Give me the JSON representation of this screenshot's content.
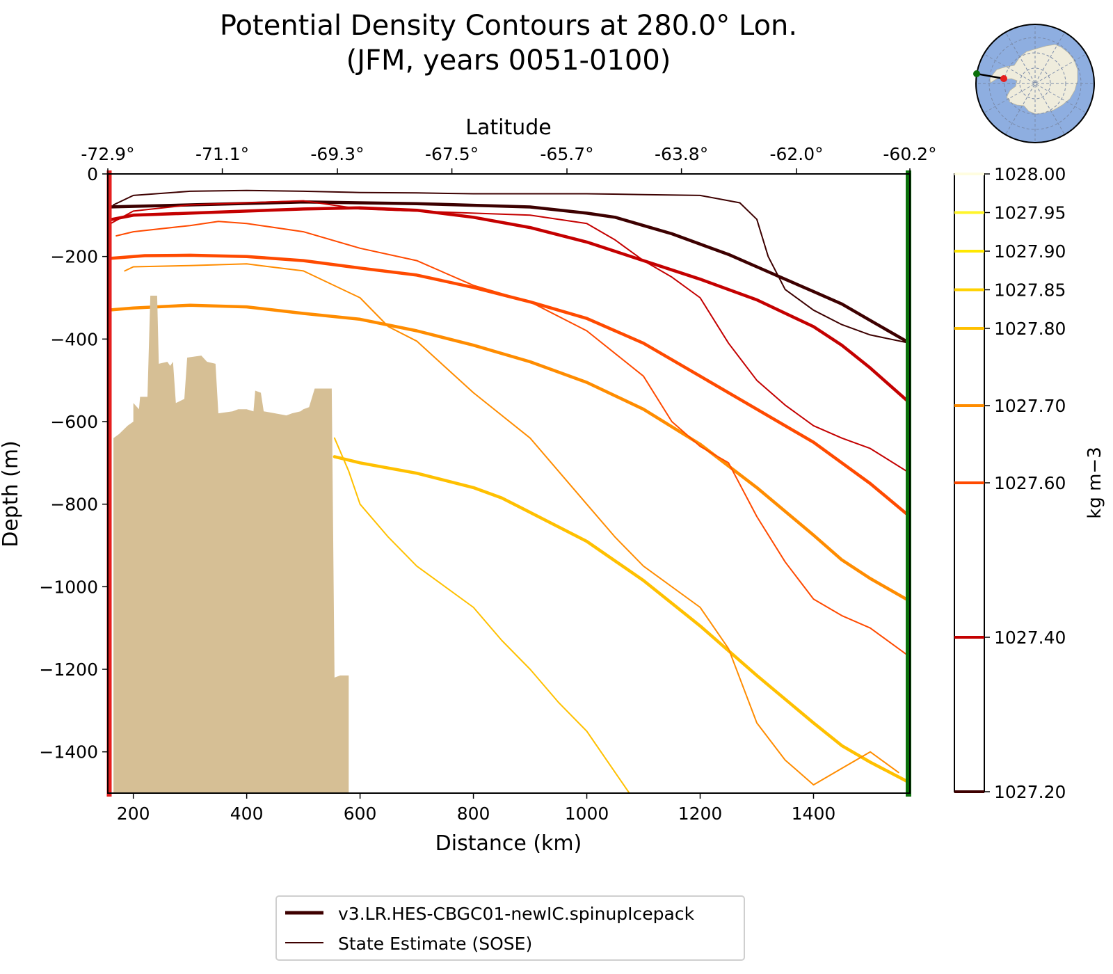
{
  "chart_data": {
    "type": "line",
    "title": "Potential Density Contours at 280.0° Lon.",
    "subtitle": "(JFM, years 0051-0100)",
    "xlabel": "Distance (km)",
    "ylabel": "Depth (m)",
    "top_axis_label": "Latitude",
    "xlim": [
      155,
      1570
    ],
    "ylim": [
      -1500,
      0
    ],
    "x_ticks": [
      200,
      400,
      600,
      800,
      1000,
      1200,
      1400
    ],
    "x_tick_labels": [
      "200",
      "400",
      "600",
      "800",
      "1000",
      "1200",
      "1400"
    ],
    "y_ticks": [
      0,
      -200,
      -400,
      -600,
      -800,
      -1000,
      -1200,
      -1400
    ],
    "y_tick_labels": [
      "0",
      "−200",
      "−400",
      "−600",
      "−800",
      "−1000",
      "−1200",
      "−1400"
    ],
    "top_ticks": [
      155,
      357,
      560,
      762,
      965,
      1167,
      1370,
      1570
    ],
    "top_tick_labels": [
      "-72.9°",
      "-71.1°",
      "-69.3°",
      "-67.5°",
      "-65.7°",
      "-63.8°",
      "-62.0°",
      "-60.2°"
    ],
    "grid": false,
    "legend_placement": "bottom-center",
    "legend": [
      {
        "label": "v3.LR.HES-CBGC01-newIC.spinupIcepack",
        "style": "thick",
        "color": "#3d0000"
      },
      {
        "label": "State Estimate (SOSE)",
        "style": "thin",
        "color": "#3d0000"
      }
    ],
    "colorbar": {
      "label": "kg m−3",
      "levels": [
        1027.2,
        1027.4,
        1027.6,
        1027.7,
        1027.8,
        1027.85,
        1027.9,
        1027.95,
        1028.0
      ],
      "level_labels": [
        "1027.20",
        "1027.40",
        "1027.60",
        "1027.70",
        "1027.80",
        "1027.85",
        "1027.90",
        "1027.95",
        "1028.00"
      ],
      "level_colors": [
        "#3d0000",
        "#c40000",
        "#ff4a00",
        "#ff8c00",
        "#ffc000",
        "#ffd200",
        "#ffe800",
        "#fff52a",
        "#fffde0"
      ]
    },
    "bathymetry": {
      "color": "#d6bf95",
      "x": [
        165,
        175,
        190,
        200,
        200,
        210,
        212,
        225,
        230,
        242,
        245,
        260,
        265,
        270,
        275,
        290,
        295,
        320,
        330,
        345,
        350,
        375,
        385,
        400,
        412,
        415,
        425,
        430,
        450,
        470,
        480,
        495,
        500,
        510,
        520,
        540,
        550,
        555,
        565,
        580
      ],
      "y": [
        -640,
        -630,
        -610,
        -600,
        -555,
        -570,
        -540,
        -540,
        -295,
        -295,
        -460,
        -455,
        -465,
        -455,
        -555,
        -545,
        -445,
        -440,
        -455,
        -460,
        -580,
        -575,
        -570,
        -570,
        -575,
        -525,
        -530,
        -575,
        -580,
        -585,
        -580,
        -575,
        -570,
        -565,
        -520,
        -520,
        -520,
        -1220,
        -1215,
        -1215
      ]
    },
    "sections": {
      "south_marker_x": 155,
      "north_marker_x": 1570,
      "south_color": "#e61f1f",
      "north_color": "#0a700a"
    },
    "series": [
      {
        "source": "model",
        "level": "1027.20",
        "color": "#3d0000",
        "x": [
          155,
          300,
          500,
          700,
          900,
          1000,
          1050,
          1100,
          1150,
          1200,
          1250,
          1300,
          1350,
          1400,
          1450,
          1500,
          1570
        ],
        "y": [
          -80,
          -75,
          -68,
          -72,
          -80,
          -95,
          -105,
          -125,
          -145,
          -170,
          -195,
          -225,
          -255,
          -285,
          -315,
          -355,
          -410
        ]
      },
      {
        "source": "model",
        "level": "1027.40",
        "color": "#c40000",
        "x": [
          155,
          200,
          300,
          400,
          500,
          600,
          700,
          800,
          900,
          1000,
          1100,
          1200,
          1300,
          1400,
          1450,
          1500,
          1570
        ],
        "y": [
          -112,
          -100,
          -95,
          -90,
          -85,
          -82,
          -88,
          -105,
          -130,
          -165,
          -210,
          -255,
          -305,
          -370,
          -415,
          -470,
          -555
        ]
      },
      {
        "source": "model",
        "level": "1027.60",
        "color": "#ff4a00",
        "x": [
          155,
          220,
          300,
          400,
          500,
          600,
          700,
          800,
          900,
          1000,
          1100,
          1200,
          1300,
          1400,
          1450,
          1500,
          1570
        ],
        "y": [
          -205,
          -198,
          -197,
          -200,
          -210,
          -228,
          -245,
          -275,
          -310,
          -350,
          -410,
          -490,
          -570,
          -650,
          -700,
          -750,
          -830
        ]
      },
      {
        "source": "model",
        "level": "1027.70",
        "color": "#ff8c00",
        "x": [
          155,
          200,
          300,
          400,
          500,
          600,
          700,
          800,
          900,
          1000,
          1100,
          1200,
          1300,
          1400,
          1450,
          1500,
          1570
        ],
        "y": [
          -330,
          -325,
          -318,
          -322,
          -338,
          -352,
          -380,
          -415,
          -455,
          -505,
          -570,
          -655,
          -760,
          -875,
          -935,
          -980,
          -1035
        ]
      },
      {
        "source": "model",
        "level": "1027.80",
        "color": "#ffc000",
        "x": [
          555,
          600,
          700,
          800,
          850,
          900,
          1000,
          1100,
          1200,
          1300,
          1400,
          1450,
          1500,
          1570
        ],
        "y": [
          -685,
          -700,
          -725,
          -760,
          -785,
          -820,
          -890,
          -985,
          -1095,
          -1215,
          -1330,
          -1385,
          -1425,
          -1475
        ]
      },
      {
        "source": "SOSE",
        "level": "1027.20",
        "color": "#3d0000",
        "x": [
          165,
          200,
          300,
          400,
          500,
          600,
          700,
          800,
          900,
          1000,
          1100,
          1200,
          1270,
          1300,
          1320,
          1350,
          1400,
          1450,
          1500,
          1570
        ],
        "y": [
          -75,
          -52,
          -42,
          -40,
          -42,
          -45,
          -46,
          -48,
          -48,
          -48,
          -50,
          -52,
          -70,
          -110,
          -200,
          -280,
          -330,
          -365,
          -390,
          -410
        ]
      },
      {
        "source": "SOSE",
        "level": "1027.40",
        "color": "#c40000",
        "x": [
          160,
          200,
          300,
          400,
          500,
          550,
          600,
          700,
          800,
          900,
          1000,
          1050,
          1100,
          1150,
          1200,
          1250,
          1300,
          1350,
          1400,
          1450,
          1500,
          1570
        ],
        "y": [
          -120,
          -90,
          -75,
          -70,
          -65,
          -75,
          -85,
          -90,
          -95,
          -100,
          -120,
          -160,
          -210,
          -250,
          -300,
          -410,
          -500,
          -560,
          -610,
          -640,
          -665,
          -725
        ]
      },
      {
        "source": "SOSE",
        "level": "1027.60",
        "color": "#ff4a00",
        "x": [
          170,
          200,
          300,
          350,
          400,
          500,
          600,
          700,
          800,
          900,
          1000,
          1100,
          1150,
          1200,
          1250,
          1300,
          1350,
          1400,
          1450,
          1500,
          1570
        ],
        "y": [
          -150,
          -140,
          -125,
          -115,
          -120,
          -140,
          -180,
          -210,
          -270,
          -310,
          -380,
          -490,
          -600,
          -660,
          -700,
          -830,
          -940,
          -1030,
          -1070,
          -1100,
          -1170
        ]
      },
      {
        "source": "SOSE",
        "level": "1027.70",
        "color": "#ff8c00",
        "x": [
          185,
          200,
          300,
          400,
          500,
          600,
          650,
          700,
          800,
          900,
          1000,
          1050,
          1100,
          1200,
          1250,
          1300,
          1350,
          1400,
          1450,
          1500,
          1550
        ],
        "y": [
          -235,
          -225,
          -222,
          -218,
          -235,
          -300,
          -370,
          -405,
          -530,
          -640,
          -800,
          -880,
          -950,
          -1050,
          -1150,
          -1330,
          -1420,
          -1480,
          -1440,
          -1400,
          -1450
        ]
      },
      {
        "source": "SOSE",
        "level": "1027.80",
        "color": "#ffc000",
        "x": [
          555,
          580,
          600,
          650,
          700,
          750,
          800,
          850,
          900,
          950,
          1000,
          1050,
          1075
        ],
        "y": [
          -640,
          -720,
          -800,
          -880,
          -950,
          -1000,
          -1050,
          -1130,
          -1200,
          -1280,
          -1350,
          -1450,
          -1500
        ]
      }
    ]
  },
  "inset_map": {
    "ocean_color": "#8eaee0",
    "land_color": "#efecdc",
    "south_point_color": "#e61f1f",
    "north_point_color": "#0a700a"
  }
}
